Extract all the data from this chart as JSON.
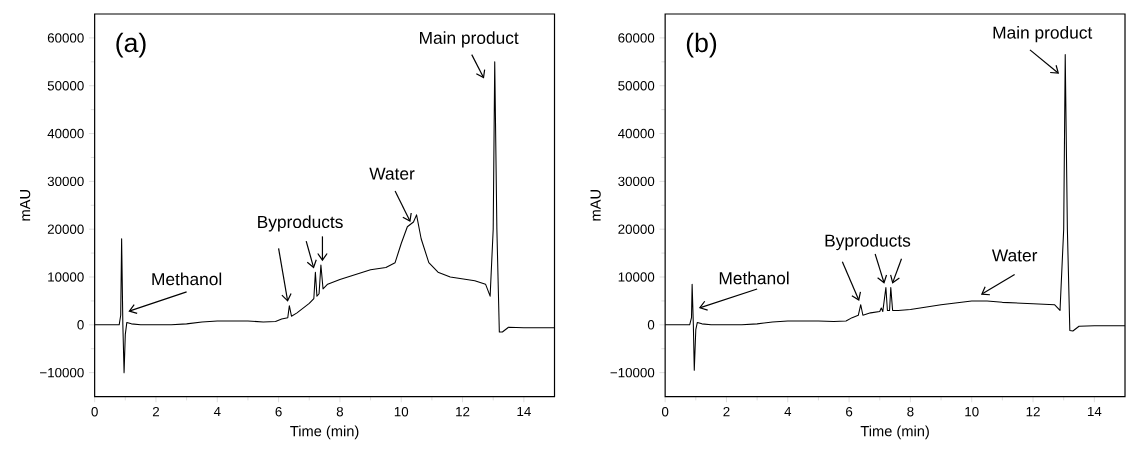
{
  "chart_data": [
    {
      "type": "line",
      "xlabel": "Time (min)",
      "ylabel": "mAU",
      "xlim": [
        0,
        15
      ],
      "ylim": [
        -15000,
        65000
      ],
      "xticks": [
        0,
        2,
        4,
        6,
        8,
        10,
        12,
        14
      ],
      "yticks": [
        {
          "value": -10000,
          "label": "−10000"
        },
        0,
        10000,
        20000,
        30000,
        40000,
        50000,
        60000
      ],
      "color": "#000000",
      "line_style": "solid",
      "annotations": [
        "(a)",
        {
          "text": "Methanol",
          "x": 1.05,
          "y": 500
        },
        {
          "text": "Byproducts",
          "x": 6.35,
          "y": 4000
        },
        {
          "text": "Water",
          "x": 10.4,
          "y": 21500
        },
        {
          "text": "Main product",
          "x": 13.05,
          "y": 55000
        }
      ],
      "x": [
        0,
        0.8,
        0.85,
        0.88,
        0.92,
        0.96,
        1.0,
        1.05,
        1.2,
        1.5,
        2.5,
        3,
        3.5,
        4,
        5,
        5.5,
        5.9,
        6.1,
        6.3,
        6.35,
        6.42,
        6.6,
        6.8,
        7.0,
        7.15,
        7.2,
        7.25,
        7.32,
        7.38,
        7.45,
        7.6,
        8,
        8.5,
        9,
        9.5,
        9.8,
        10.0,
        10.2,
        10.4,
        10.5,
        10.65,
        10.9,
        11.2,
        11.6,
        12.4,
        12.75,
        12.9,
        13.0,
        13.05,
        13.12,
        13.2,
        13.3,
        13.5,
        14,
        15
      ],
      "values": [
        0,
        0,
        2000,
        18000,
        0,
        -10000,
        -2000,
        500,
        200,
        0,
        0,
        200,
        600,
        800,
        800,
        600,
        700,
        1200,
        1500,
        4000,
        1800,
        2500,
        3500,
        4500,
        5500,
        11000,
        6000,
        6500,
        12500,
        7500,
        8500,
        9500,
        10500,
        11500,
        12000,
        13000,
        17000,
        20500,
        21500,
        23000,
        18000,
        13000,
        11000,
        10000,
        9200,
        8500,
        6000,
        20000,
        55000,
        20000,
        -1500,
        -1500,
        -500,
        -600,
        -600
      ]
    },
    {
      "type": "line",
      "xlabel": "Time (min)",
      "ylabel": "mAU",
      "xlim": [
        0,
        15
      ],
      "ylim": [
        -15000,
        65000
      ],
      "xticks": [
        0,
        2,
        4,
        6,
        8,
        10,
        12,
        14
      ],
      "yticks": [
        {
          "value": -10000,
          "label": "−10000"
        },
        0,
        10000,
        20000,
        30000,
        40000,
        50000,
        60000
      ],
      "color": "#000000",
      "line_style": "solid",
      "annotations": [
        "(b)",
        {
          "text": "Methanol",
          "x": 1.05,
          "y": 500
        },
        {
          "text": "Byproducts",
          "x": 6.38,
          "y": 4200
        },
        {
          "text": "Water",
          "x": 10.5,
          "y": 5000
        },
        {
          "text": "Main product",
          "x": 13.05,
          "y": 56500
        }
      ],
      "x": [
        0,
        0.8,
        0.86,
        0.88,
        0.92,
        0.95,
        1.0,
        1.05,
        1.2,
        1.5,
        2.5,
        3,
        3.5,
        4,
        5,
        5.5,
        5.9,
        6.1,
        6.3,
        6.38,
        6.45,
        6.7,
        7.0,
        7.05,
        7.1,
        7.2,
        7.25,
        7.32,
        7.36,
        7.42,
        7.6,
        8,
        9,
        10,
        10.5,
        11,
        12,
        12.7,
        12.88,
        13.0,
        13.05,
        13.12,
        13.2,
        13.3,
        13.5,
        14,
        15
      ],
      "values": [
        0,
        0,
        1500,
        8500,
        0,
        -9500,
        -1000,
        500,
        200,
        0,
        0,
        200,
        600,
        800,
        800,
        700,
        800,
        1500,
        2000,
        4200,
        2000,
        2500,
        2800,
        3500,
        2800,
        7800,
        3000,
        3000,
        7800,
        3000,
        3000,
        3200,
        4200,
        5000,
        5000,
        4700,
        4400,
        4200,
        3000,
        20000,
        56500,
        20000,
        -1200,
        -1300,
        -300,
        -200,
        -200
      ]
    }
  ]
}
